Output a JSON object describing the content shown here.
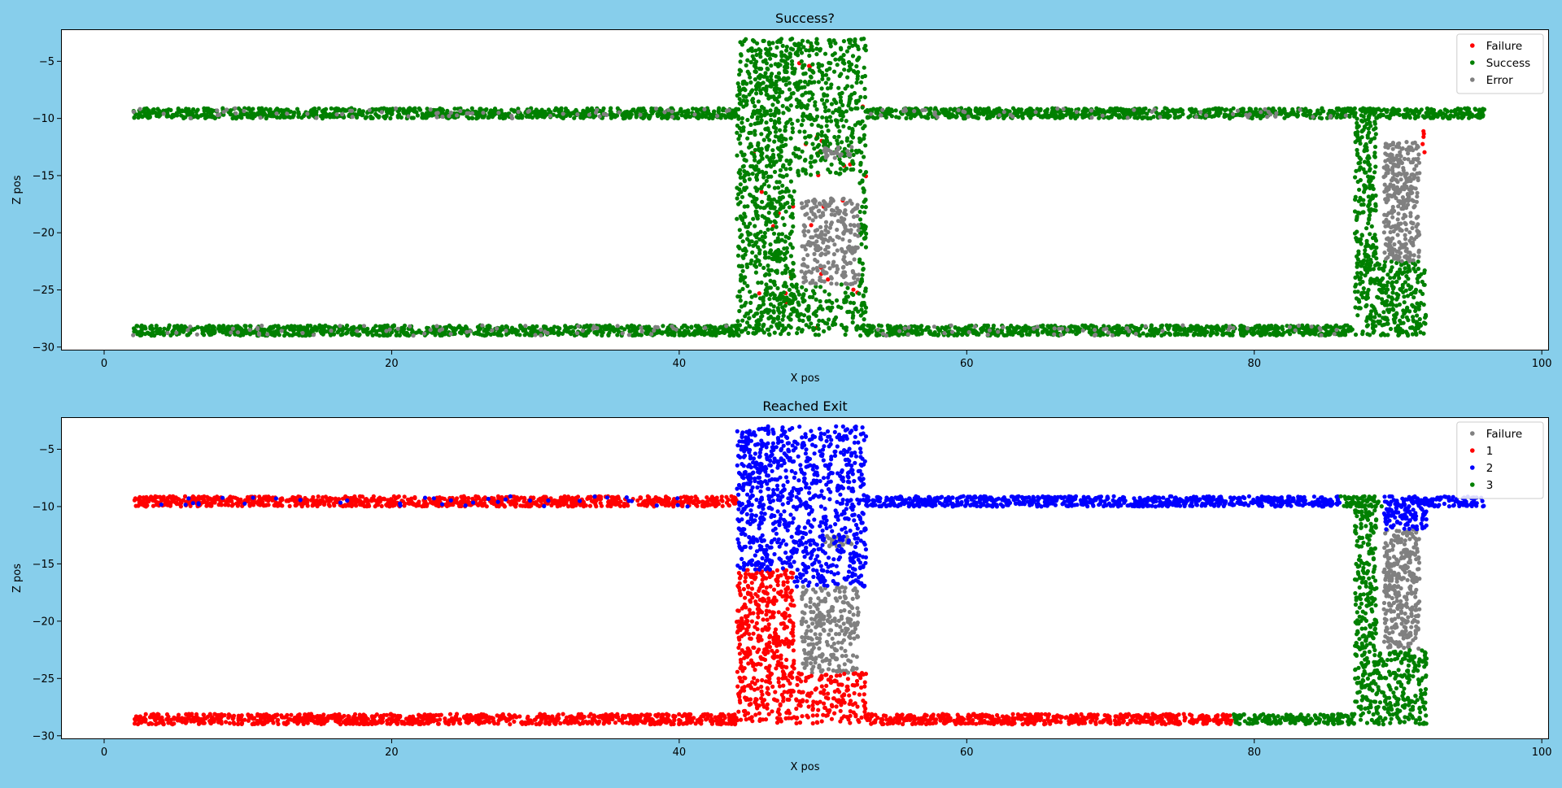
{
  "figure": {
    "background": "#87ceeb"
  },
  "chart_data": [
    {
      "type": "scatter",
      "title": "Success?",
      "xlabel": "X pos",
      "ylabel": "Z pos",
      "xlim": [
        -3,
        100.5
      ],
      "ylim": [
        -30.3,
        -2.2
      ],
      "xticks": [
        0,
        20,
        40,
        60,
        80,
        100
      ],
      "yticks": [
        -5,
        -10,
        -15,
        -20,
        -25,
        -30
      ],
      "grid": false,
      "legend": {
        "placement": "top-right"
      },
      "series": [
        {
          "name": "Failure",
          "color": "#ff0000",
          "regions": [
            {
              "x": [
                44.5,
                53
              ],
              "y": [
                -28.5,
                -3
              ],
              "density": 0.06
            },
            {
              "x": [
                91.5,
                92
              ],
              "y": [
                -13,
                -10.5
              ],
              "density": 1.5
            }
          ]
        },
        {
          "name": "Success",
          "color": "#008000",
          "regions": [
            {
              "x": [
                2,
                44
              ],
              "y": [
                -10,
                -9.1
              ],
              "density": 10
            },
            {
              "x": [
                2,
                44
              ],
              "y": [
                -29,
                -28.1
              ],
              "density": 10
            },
            {
              "x": [
                53,
                87
              ],
              "y": [
                -10,
                -9.1
              ],
              "density": 10
            },
            {
              "x": [
                53,
                87
              ],
              "y": [
                -29,
                -28.1
              ],
              "density": 10
            },
            {
              "x": [
                87,
                96
              ],
              "y": [
                -10,
                -9.1
              ],
              "density": 10
            },
            {
              "x": [
                44,
                48
              ],
              "y": [
                -29,
                -3
              ],
              "density": 3.4
            },
            {
              "x": [
                48,
                53
              ],
              "y": [
                -15,
                -3
              ],
              "density": 2.6
            },
            {
              "x": [
                52.5,
                53
              ],
              "y": [
                -29,
                -15
              ],
              "density": 3
            },
            {
              "x": [
                48,
                53
              ],
              "y": [
                -29,
                -24.5
              ],
              "density": 2.4
            },
            {
              "x": [
                87,
                88.5
              ],
              "y": [
                -29,
                -10
              ],
              "density": 4
            },
            {
              "x": [
                88.5,
                92
              ],
              "y": [
                -29,
                -22.5
              ],
              "density": 4
            }
          ]
        },
        {
          "name": "Error",
          "color": "#808080",
          "regions": [
            {
              "x": [
                2,
                44
              ],
              "y": [
                -10,
                -9.1
              ],
              "density": 0.7
            },
            {
              "x": [
                2,
                44
              ],
              "y": [
                -29,
                -28.1
              ],
              "density": 0.7
            },
            {
              "x": [
                53,
                87
              ],
              "y": [
                -10,
                -9.1
              ],
              "density": 0.7
            },
            {
              "x": [
                53,
                87
              ],
              "y": [
                -29,
                -28.1
              ],
              "density": 0.7
            },
            {
              "x": [
                48.5,
                52.5
              ],
              "y": [
                -24.5,
                -17
              ],
              "density": 3.4
            },
            {
              "x": [
                50,
                52
              ],
              "y": [
                -13.5,
                -12.5
              ],
              "density": 5
            },
            {
              "x": [
                89,
                91.5
              ],
              "y": [
                -22.5,
                -12
              ],
              "density": 5
            }
          ]
        }
      ]
    },
    {
      "type": "scatter",
      "title": "Reached Exit",
      "xlabel": "X pos",
      "ylabel": "Z pos",
      "xlim": [
        -3,
        100.5
      ],
      "ylim": [
        -30.3,
        -2.2
      ],
      "xticks": [
        0,
        20,
        40,
        60,
        80,
        100
      ],
      "yticks": [
        -5,
        -10,
        -15,
        -20,
        -25,
        -30
      ],
      "grid": false,
      "legend": {
        "placement": "top-right"
      },
      "series": [
        {
          "name": "Failure",
          "color": "#808080",
          "regions": [
            {
              "x": [
                48.5,
                52.5
              ],
              "y": [
                -24.5,
                -17
              ],
              "density": 3.4
            },
            {
              "x": [
                50,
                52
              ],
              "y": [
                -13.5,
                -12.5
              ],
              "density": 5
            },
            {
              "x": [
                89,
                91.5
              ],
              "y": [
                -22.5,
                -12
              ],
              "density": 5
            }
          ]
        },
        {
          "name": "1",
          "color": "#ff0000",
          "regions": [
            {
              "x": [
                2,
                44
              ],
              "y": [
                -10,
                -9.1
              ],
              "density": 10
            },
            {
              "x": [
                2,
                44
              ],
              "y": [
                -29,
                -28.1
              ],
              "density": 10
            },
            {
              "x": [
                53,
                78.5
              ],
              "y": [
                -29,
                -28.1
              ],
              "density": 10
            },
            {
              "x": [
                44,
                48
              ],
              "y": [
                -29,
                -15.5
              ],
              "density": 3.6
            },
            {
              "x": [
                48,
                53
              ],
              "y": [
                -29,
                -24.5
              ],
              "density": 3
            }
          ]
        },
        {
          "name": "2",
          "color": "#0000ff",
          "regions": [
            {
              "x": [
                44,
                48
              ],
              "y": [
                -15.5,
                -3
              ],
              "density": 3.6
            },
            {
              "x": [
                48,
                53
              ],
              "y": [
                -17,
                -3
              ],
              "density": 2.8
            },
            {
              "x": [
                53,
                86
              ],
              "y": [
                -10,
                -9.1
              ],
              "density": 10
            },
            {
              "x": [
                89,
                96
              ],
              "y": [
                -10,
                -9.1
              ],
              "density": 8
            },
            {
              "x": [
                89,
                92
              ],
              "y": [
                -12,
                -10
              ],
              "density": 6
            },
            {
              "x": [
                2,
                44
              ],
              "y": [
                -10,
                -9.1
              ],
              "density": 0.4
            }
          ]
        },
        {
          "name": "3",
          "color": "#008000",
          "regions": [
            {
              "x": [
                78.5,
                87
              ],
              "y": [
                -29,
                -28.1
              ],
              "density": 10
            },
            {
              "x": [
                87,
                88.5
              ],
              "y": [
                -29,
                -9.1
              ],
              "density": 4
            },
            {
              "x": [
                86,
                89
              ],
              "y": [
                -10,
                -9.1
              ],
              "density": 6
            },
            {
              "x": [
                88.5,
                92
              ],
              "y": [
                -29,
                -22.5
              ],
              "density": 4
            }
          ]
        }
      ]
    }
  ]
}
